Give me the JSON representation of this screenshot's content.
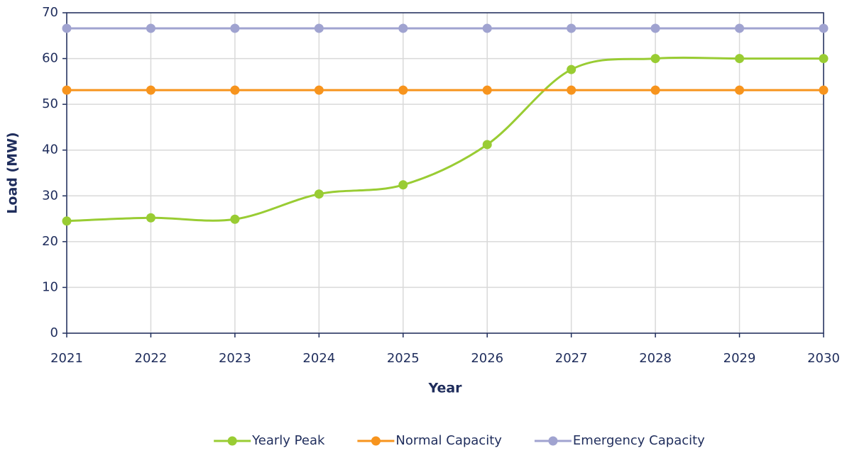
{
  "chart_data": {
    "type": "line",
    "x": [
      2021,
      2022,
      2023,
      2024,
      2025,
      2026,
      2027,
      2028,
      2029,
      2030
    ],
    "xlim": [
      2021,
      2030
    ],
    "xticks": [
      2021,
      2022,
      2023,
      2024,
      2025,
      2026,
      2027,
      2028,
      2029,
      2030
    ],
    "ylim": [
      0,
      70
    ],
    "yticks": [
      0,
      10,
      20,
      30,
      40,
      50,
      60,
      70
    ],
    "x_label": "Year",
    "y_label": "Load (MW)",
    "grid": true,
    "smooth": true,
    "legend": "bottom",
    "series": [
      {
        "name": "Yearly Peak",
        "color": "#99cc33",
        "values": [
          24.5,
          25.2,
          24.9,
          30.4,
          32.4,
          41.2,
          57.6,
          60.0,
          60.0,
          60.0
        ]
      },
      {
        "name": "Normal Capacity",
        "color": "#f7941d",
        "values": [
          53.1,
          53.1,
          53.1,
          53.1,
          53.1,
          53.1,
          53.1,
          53.1,
          53.1,
          53.1
        ]
      },
      {
        "name": "Emergency Capacity",
        "color": "#a0a3d0",
        "values": [
          66.6,
          66.6,
          66.6,
          66.6,
          66.6,
          66.6,
          66.6,
          66.6,
          66.6,
          66.6
        ]
      }
    ]
  }
}
